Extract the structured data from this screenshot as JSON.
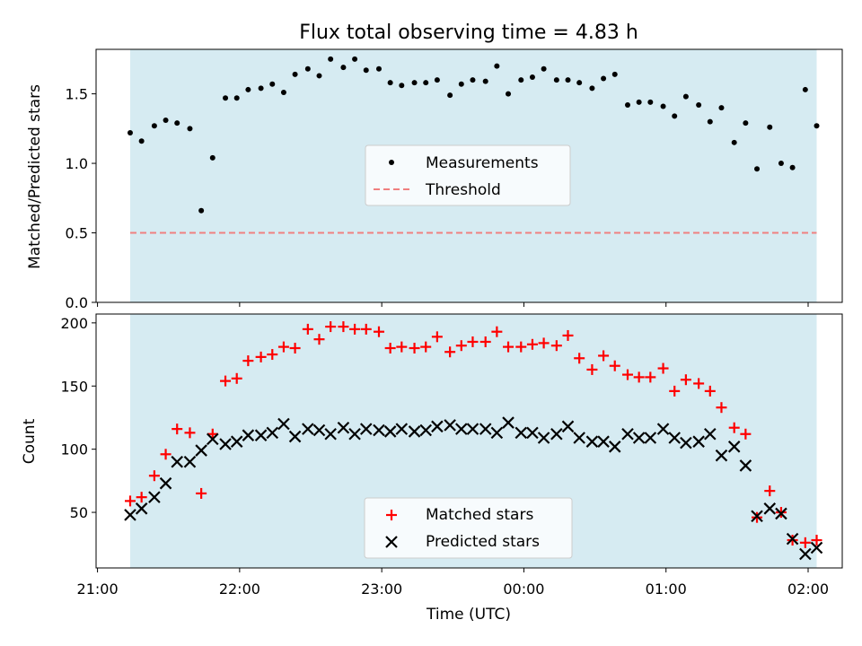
{
  "chart_data": [
    {
      "type": "scatter",
      "title": "Flux total observing time = 4.83 h",
      "xlabel": "",
      "ylabel": "Matched/Predicted stars",
      "ylim": [
        0,
        1.82
      ],
      "yticks": [
        0.0,
        0.5,
        1.0,
        1.5
      ],
      "ytick_labels": [
        "0.0",
        "0.5",
        "1.0",
        "1.5"
      ],
      "x_unit": "hours since 21:00 UTC",
      "shaded_span": [
        0.23,
        5.06
      ],
      "shade_color": "#add8e6",
      "threshold": {
        "name": "Threshold",
        "value": 0.5,
        "color": "#f08080"
      },
      "legend": {
        "position": "center",
        "items": [
          "Measurements",
          "Threshold"
        ]
      },
      "series": [
        {
          "name": "Measurements",
          "marker": "dot",
          "color": "#000000",
          "x": [
            0.23,
            0.31,
            0.4,
            0.48,
            0.56,
            0.65,
            0.73,
            0.81,
            0.9,
            0.98,
            1.06,
            1.15,
            1.23,
            1.31,
            1.39,
            1.48,
            1.56,
            1.64,
            1.73,
            1.81,
            1.89,
            1.98,
            2.06,
            2.14,
            2.23,
            2.31,
            2.39,
            2.48,
            2.56,
            2.64,
            2.73,
            2.81,
            2.89,
            2.98,
            3.06,
            3.14,
            3.23,
            3.31,
            3.39,
            3.48,
            3.56,
            3.64,
            3.73,
            3.81,
            3.89,
            3.98,
            4.06,
            4.14,
            4.23,
            4.31,
            4.39,
            4.48,
            4.56,
            4.64,
            4.73,
            4.81,
            4.89,
            4.98,
            5.06
          ],
          "y": [
            1.22,
            1.16,
            1.27,
            1.31,
            1.29,
            1.25,
            0.66,
            1.04,
            1.47,
            1.47,
            1.53,
            1.54,
            1.57,
            1.51,
            1.64,
            1.68,
            1.63,
            1.75,
            1.69,
            1.75,
            1.67,
            1.68,
            1.58,
            1.56,
            1.58,
            1.58,
            1.6,
            1.49,
            1.57,
            1.6,
            1.59,
            1.7,
            1.5,
            1.6,
            1.62,
            1.68,
            1.6,
            1.6,
            1.58,
            1.54,
            1.61,
            1.64,
            1.42,
            1.44,
            1.44,
            1.41,
            1.34,
            1.48,
            1.42,
            1.3,
            1.4,
            1.15,
            1.29,
            0.96,
            1.26,
            1.0,
            0.97,
            1.53,
            1.27
          ]
        }
      ]
    },
    {
      "type": "scatter",
      "title": "",
      "xlabel": "Time (UTC)",
      "ylabel": "Count",
      "ylim": [
        6,
        207
      ],
      "yticks": [
        50,
        100,
        150,
        200
      ],
      "ytick_labels": [
        "50",
        "100",
        "150",
        "200"
      ],
      "xlim": [
        -0.01,
        5.24
      ],
      "xticks": [
        0,
        1,
        2,
        3,
        4,
        5
      ],
      "xtick_labels": [
        "21:00",
        "22:00",
        "23:00",
        "00:00",
        "01:00",
        "02:00"
      ],
      "x_unit": "hours since 21:00 UTC",
      "shaded_span": [
        0.23,
        5.06
      ],
      "shade_color": "#add8e6",
      "legend": {
        "position": "lower center",
        "items": [
          "Matched stars",
          "Predicted stars"
        ]
      },
      "series": [
        {
          "name": "Matched stars",
          "marker": "plus",
          "color": "#ff0000",
          "x": [
            0.23,
            0.31,
            0.4,
            0.48,
            0.56,
            0.65,
            0.73,
            0.81,
            0.9,
            0.98,
            1.06,
            1.15,
            1.23,
            1.31,
            1.39,
            1.48,
            1.56,
            1.64,
            1.73,
            1.81,
            1.89,
            1.98,
            2.06,
            2.14,
            2.23,
            2.31,
            2.39,
            2.48,
            2.56,
            2.64,
            2.73,
            2.81,
            2.89,
            2.98,
            3.06,
            3.14,
            3.23,
            3.31,
            3.39,
            3.48,
            3.56,
            3.64,
            3.73,
            3.81,
            3.89,
            3.98,
            4.06,
            4.14,
            4.23,
            4.31,
            4.39,
            4.48,
            4.56,
            4.64,
            4.73,
            4.81,
            4.89,
            4.98,
            5.06
          ],
          "y": [
            59,
            62,
            79,
            96,
            116,
            113,
            65,
            112,
            154,
            156,
            170,
            173,
            175,
            181,
            180,
            195,
            187,
            197,
            197,
            195,
            195,
            193,
            180,
            181,
            180,
            181,
            189,
            177,
            182,
            185,
            185,
            193,
            181,
            181,
            183,
            184,
            182,
            190,
            172,
            163,
            174,
            166,
            159,
            157,
            157,
            164,
            146,
            155,
            152,
            146,
            133,
            117,
            112,
            46,
            67,
            50,
            28,
            26,
            28
          ]
        },
        {
          "name": "Predicted stars",
          "marker": "x",
          "color": "#000000",
          "x": [
            0.23,
            0.31,
            0.4,
            0.48,
            0.56,
            0.65,
            0.73,
            0.81,
            0.9,
            0.98,
            1.06,
            1.15,
            1.23,
            1.31,
            1.39,
            1.48,
            1.56,
            1.64,
            1.73,
            1.81,
            1.89,
            1.98,
            2.06,
            2.14,
            2.23,
            2.31,
            2.39,
            2.48,
            2.56,
            2.64,
            2.73,
            2.81,
            2.89,
            2.98,
            3.06,
            3.14,
            3.23,
            3.31,
            3.39,
            3.48,
            3.56,
            3.64,
            3.73,
            3.81,
            3.89,
            3.98,
            4.06,
            4.14,
            4.23,
            4.31,
            4.39,
            4.48,
            4.56,
            4.64,
            4.73,
            4.81,
            4.89,
            4.98,
            5.06
          ],
          "y": [
            48,
            53,
            62,
            73,
            90,
            90,
            99,
            108,
            104,
            106,
            111,
            111,
            113,
            120,
            110,
            116,
            115,
            112,
            117,
            112,
            116,
            115,
            114,
            116,
            114,
            115,
            118,
            119,
            116,
            116,
            116,
            113,
            121,
            113,
            113,
            109,
            112,
            118,
            109,
            106,
            106,
            102,
            112,
            109,
            109,
            116,
            109,
            105,
            106,
            112,
            95,
            102,
            87,
            47,
            53,
            49,
            29,
            17,
            22
          ]
        }
      ]
    }
  ]
}
